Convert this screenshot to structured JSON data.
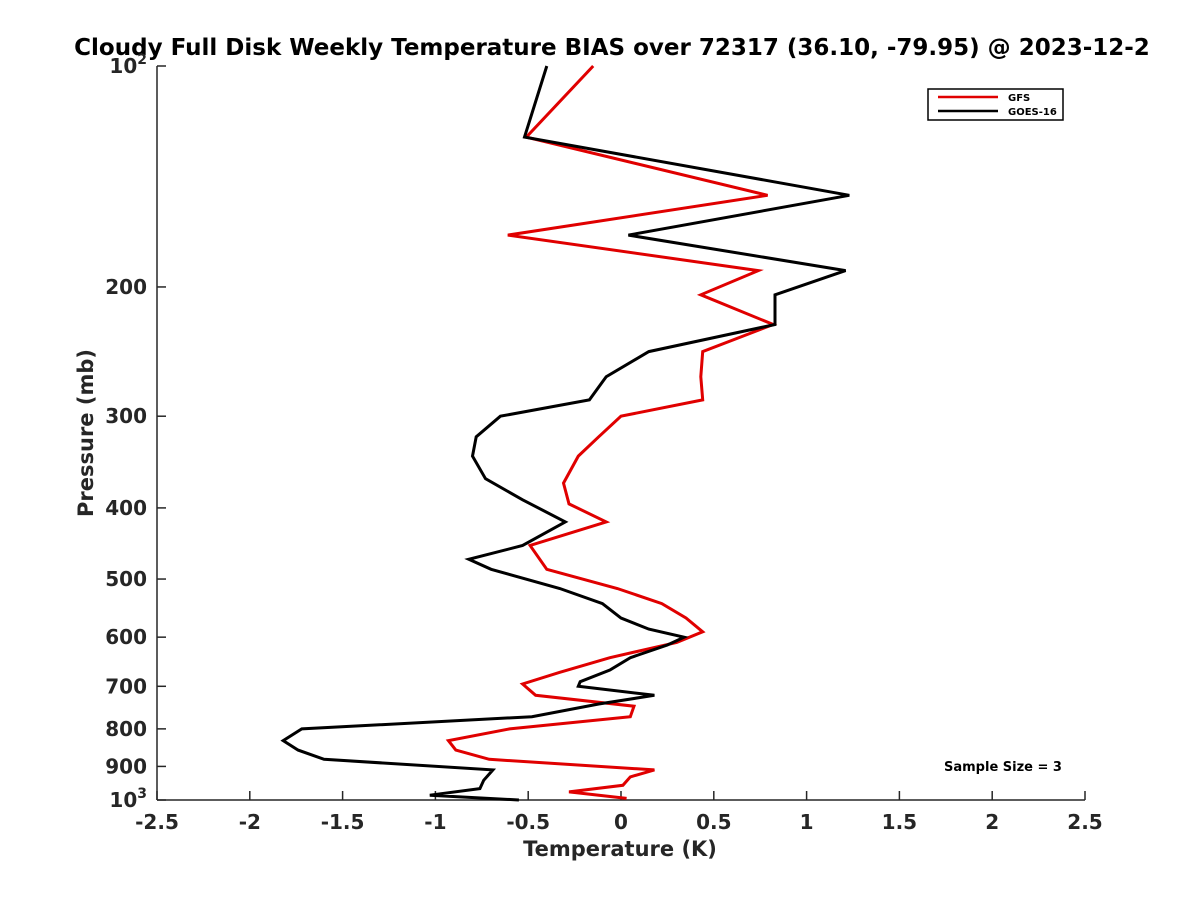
{
  "chart_data": {
    "type": "line",
    "title": "Cloudy Full Disk Weekly Temperature BIAS over 72317 (36.10, -79.95) @ 2023-12-2",
    "xlabel": "Temperature (K)",
    "ylabel": "Pressure (mb)",
    "xlim": [
      -2.5,
      2.5
    ],
    "ylim": [
      100,
      1000
    ],
    "y_scale": "log",
    "y_reversed": true,
    "grid": false,
    "legend_position": "top-right",
    "x_ticks": [
      {
        "value": -2.5,
        "label": "-2.5"
      },
      {
        "value": -2,
        "label": "-2"
      },
      {
        "value": -1.5,
        "label": "-1.5"
      },
      {
        "value": -1,
        "label": "-1"
      },
      {
        "value": -0.5,
        "label": "-0.5"
      },
      {
        "value": 0,
        "label": "0"
      },
      {
        "value": 0.5,
        "label": "0.5"
      },
      {
        "value": 1,
        "label": "1"
      },
      {
        "value": 1.5,
        "label": "1.5"
      },
      {
        "value": 2,
        "label": "2"
      },
      {
        "value": 2.5,
        "label": "2.5"
      }
    ],
    "y_ticks": [
      {
        "value": 100,
        "base": "10",
        "exp": "2"
      },
      {
        "value": 200,
        "base": "200",
        "exp": ""
      },
      {
        "value": 300,
        "base": "300",
        "exp": ""
      },
      {
        "value": 400,
        "base": "400",
        "exp": ""
      },
      {
        "value": 500,
        "base": "500",
        "exp": ""
      },
      {
        "value": 600,
        "base": "600",
        "exp": ""
      },
      {
        "value": 700,
        "base": "700",
        "exp": ""
      },
      {
        "value": 800,
        "base": "800",
        "exp": ""
      },
      {
        "value": 900,
        "base": "900",
        "exp": ""
      },
      {
        "value": 1000,
        "base": "10",
        "exp": "3"
      }
    ],
    "series": [
      {
        "name": "GFS",
        "color": "#e00000",
        "points": [
          [
            -0.15,
            100
          ],
          [
            -0.51,
            125
          ],
          [
            0.79,
            150
          ],
          [
            -0.61,
            170
          ],
          [
            0.74,
            190
          ],
          [
            0.43,
            205
          ],
          [
            0.82,
            225
          ],
          [
            0.44,
            245
          ],
          [
            0.43,
            265
          ],
          [
            0.44,
            285
          ],
          [
            0.0,
            300
          ],
          [
            -0.12,
            320
          ],
          [
            -0.23,
            340
          ],
          [
            -0.31,
            370
          ],
          [
            -0.28,
            395
          ],
          [
            -0.08,
            418
          ],
          [
            -0.49,
            450
          ],
          [
            -0.4,
            485
          ],
          [
            -0.02,
            515
          ],
          [
            0.22,
            540
          ],
          [
            0.35,
            565
          ],
          [
            0.44,
            590
          ],
          [
            0.3,
            610
          ],
          [
            -0.06,
            640
          ],
          [
            -0.33,
            670
          ],
          [
            -0.53,
            695
          ],
          [
            -0.46,
            720
          ],
          [
            0.07,
            745
          ],
          [
            0.05,
            770
          ],
          [
            -0.6,
            800
          ],
          [
            -0.93,
            830
          ],
          [
            -0.89,
            855
          ],
          [
            -0.71,
            880
          ],
          [
            0.18,
            910
          ],
          [
            0.05,
            930
          ],
          [
            0.01,
            955
          ],
          [
            -0.28,
            975
          ],
          [
            0.03,
            995
          ]
        ]
      },
      {
        "name": "GOES-16",
        "color": "#000000",
        "points": [
          [
            -0.4,
            100
          ],
          [
            -0.52,
            125
          ],
          [
            1.23,
            150
          ],
          [
            0.04,
            170
          ],
          [
            1.21,
            190
          ],
          [
            0.83,
            205
          ],
          [
            0.83,
            225
          ],
          [
            0.15,
            245
          ],
          [
            -0.08,
            265
          ],
          [
            -0.17,
            285
          ],
          [
            -0.65,
            300
          ],
          [
            -0.78,
            320
          ],
          [
            -0.8,
            340
          ],
          [
            -0.73,
            365
          ],
          [
            -0.53,
            390
          ],
          [
            -0.3,
            418
          ],
          [
            -0.53,
            450
          ],
          [
            -0.82,
            470
          ],
          [
            -0.7,
            485
          ],
          [
            -0.33,
            515
          ],
          [
            -0.1,
            540
          ],
          [
            0.0,
            565
          ],
          [
            0.15,
            585
          ],
          [
            0.34,
            600
          ],
          [
            0.25,
            615
          ],
          [
            0.05,
            640
          ],
          [
            -0.06,
            665
          ],
          [
            -0.22,
            690
          ],
          [
            -0.23,
            700
          ],
          [
            0.18,
            720
          ],
          [
            -0.12,
            740
          ],
          [
            -0.48,
            770
          ],
          [
            -1.72,
            800
          ],
          [
            -1.82,
            830
          ],
          [
            -1.74,
            855
          ],
          [
            -1.6,
            880
          ],
          [
            -0.69,
            910
          ],
          [
            -0.74,
            940
          ],
          [
            -0.76,
            965
          ],
          [
            -1.03,
            985
          ],
          [
            -0.55,
            1000
          ]
        ]
      }
    ],
    "annotation": "Sample Size = 3"
  }
}
